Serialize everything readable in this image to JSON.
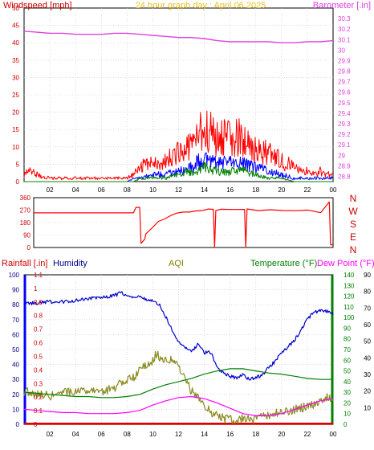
{
  "chart_data": [
    {
      "type": "line",
      "title": "24 hour graph day : April 06 2025",
      "ylabel": "Windspeed [mph]",
      "y2label": "Barometer [.in]",
      "x_ticks": [
        "02",
        "04",
        "06",
        "08",
        "10",
        "12",
        "14",
        "16",
        "18",
        "20",
        "22",
        "00"
      ],
      "ylim": [
        0,
        50
      ],
      "y_ticks": [
        "0",
        "5",
        "10",
        "15",
        "20",
        "25",
        "30",
        "35",
        "40",
        "45",
        "50"
      ],
      "y2lim": [
        28.75,
        30.4
      ],
      "y2_ticks": [
        "28.8",
        "28.9",
        "29",
        "29.1",
        "29.2",
        "29.3",
        "29.4",
        "29.5",
        "29.6",
        "29.7",
        "29.8",
        "29.9",
        "30",
        "30.1",
        "30.2",
        "30.3"
      ],
      "grid": true,
      "series": [
        {
          "key": "barometer",
          "color": "#e040e0",
          "axis": "right",
          "x": [
            0,
            1,
            2,
            3,
            4,
            5,
            6,
            7,
            8,
            9,
            10,
            11,
            12,
            13,
            14,
            15,
            16,
            17,
            18,
            19,
            20,
            21,
            22,
            23,
            24
          ],
          "y": [
            30.18,
            30.17,
            30.16,
            30.16,
            30.15,
            30.15,
            30.15,
            30.16,
            30.16,
            30.15,
            30.14,
            30.13,
            30.12,
            30.12,
            30.11,
            30.09,
            30.08,
            30.08,
            30.08,
            30.08,
            30.07,
            30.07,
            30.08,
            30.08,
            30.09
          ]
        },
        {
          "key": "gust",
          "color": "#ff0000",
          "axis": "left",
          "x": [
            0,
            0.5,
            1,
            2,
            3,
            4,
            5,
            6,
            7,
            8,
            8.5,
            9,
            9.5,
            10,
            10.5,
            11,
            11.5,
            12,
            12.5,
            13,
            13.5,
            14,
            14.5,
            15,
            15.5,
            16,
            16.5,
            17,
            17.5,
            18,
            18.5,
            19,
            19.5,
            20,
            20.5,
            21,
            21.5,
            22,
            22.5,
            23,
            23.5,
            24
          ],
          "y": [
            2,
            3,
            2,
            1,
            1,
            1,
            1,
            1,
            1,
            1,
            2,
            4,
            5,
            5,
            6,
            6,
            7,
            8,
            9,
            11,
            13,
            15,
            14,
            12,
            13,
            12,
            13,
            12,
            11,
            9,
            9,
            8,
            7,
            6,
            5,
            4,
            3,
            3,
            2,
            3,
            2,
            2
          ]
        },
        {
          "key": "average",
          "color": "#0000ff",
          "axis": "left",
          "x": [
            0,
            2,
            4,
            6,
            8,
            8.5,
            9,
            10,
            11,
            12,
            13,
            14,
            15,
            16,
            17,
            18,
            19,
            20,
            21,
            22,
            23,
            24
          ],
          "y": [
            0,
            0,
            0,
            0,
            0,
            1,
            1,
            2,
            2,
            3,
            4,
            7,
            5,
            6,
            5,
            4,
            3,
            2,
            1,
            1,
            1,
            1
          ]
        },
        {
          "key": "speed",
          "color": "#008000",
          "axis": "left",
          "x": [
            0,
            2,
            4,
            6,
            8,
            8.5,
            9,
            10,
            11,
            12,
            13,
            14,
            15,
            16,
            17,
            18,
            19,
            20,
            21,
            22,
            23,
            24
          ],
          "y": [
            0,
            0,
            0,
            0,
            0,
            0,
            1,
            1,
            1,
            2,
            3,
            4,
            3,
            3,
            3,
            2,
            1,
            1,
            0,
            0,
            0,
            0
          ]
        }
      ]
    },
    {
      "type": "line",
      "y_ticks": [
        "0",
        "90",
        "180",
        "270",
        "360"
      ],
      "ylim": [
        0,
        360
      ],
      "compass": [
        "N",
        "W",
        "S",
        "E",
        "N"
      ],
      "series": [
        {
          "key": "direction",
          "color": "#ff0000",
          "x": [
            0,
            7,
            8,
            8.2,
            8.4,
            8.5,
            8.6,
            8.9,
            9,
            9.5,
            10,
            10.5,
            11,
            11.5,
            12,
            12.5,
            13,
            13.5,
            14,
            14.4,
            14.5,
            14.6,
            15,
            16,
            16.9,
            17,
            17.1,
            18,
            19,
            20,
            21,
            22,
            23,
            23.7,
            23.8,
            23.9,
            24
          ],
          "y": [
            250,
            250,
            250,
            290,
            290,
            290,
            30,
            60,
            100,
            150,
            180,
            210,
            230,
            240,
            250,
            255,
            260,
            265,
            270,
            270,
            0,
            270,
            268,
            272,
            270,
            0,
            270,
            275,
            270,
            268,
            265,
            262,
            255,
            330,
            20,
            20,
            20
          ]
        }
      ]
    },
    {
      "type": "line",
      "legend": [
        {
          "label": "Rainfall [.in]",
          "color": "#ff0000"
        },
        {
          "label": "Humidity",
          "color": "#0000aa"
        },
        {
          "label": "AQI",
          "color": "#808000"
        },
        {
          "label": "Temperature (°F)",
          "color": "#008000"
        },
        {
          "label": "Dew Point (°F)",
          "color": "#ff00ff"
        }
      ],
      "rain_ticks": [
        "0",
        "0.1",
        "0.2",
        "0.3",
        "0.4",
        "0.5",
        "0.6",
        "0.7",
        "0.8",
        "0.9",
        "1",
        "1.1"
      ],
      "humidity_ticks": [
        "0",
        "10",
        "20",
        "30",
        "40",
        "50",
        "60",
        "70",
        "80",
        "90",
        "100"
      ],
      "temp_ticks": [
        "0",
        "10",
        "20",
        "30",
        "40",
        "50",
        "60",
        "70",
        "80",
        "90",
        "100",
        "110",
        "120",
        "130",
        "140"
      ],
      "right_ticks": [
        "10",
        "20",
        "30",
        "40",
        "50",
        "60",
        "70",
        "80",
        "90"
      ],
      "x_ticks": [
        "02",
        "04",
        "06",
        "08",
        "10",
        "12",
        "14",
        "16",
        "18",
        "20",
        "22",
        "00"
      ],
      "grid": true,
      "series": [
        {
          "key": "humidity",
          "color": "#0000cc",
          "axis": "humidity",
          "x": [
            0,
            1,
            2,
            3,
            4,
            5,
            6,
            7,
            7.5,
            8,
            9,
            10,
            10.5,
            11,
            11.5,
            12,
            12.5,
            13,
            13.5,
            14,
            14.5,
            15,
            15.5,
            16,
            16.5,
            17,
            17.5,
            18,
            18.5,
            19,
            19.5,
            20,
            20.5,
            21,
            21.5,
            22,
            22.5,
            23,
            23.5,
            24
          ],
          "y": [
            81,
            81,
            82,
            82,
            83,
            84,
            85,
            86,
            88,
            86,
            85,
            83,
            80,
            72,
            63,
            55,
            52,
            48,
            54,
            48,
            48,
            38,
            34,
            32,
            31,
            33,
            30,
            31,
            33,
            38,
            42,
            48,
            52,
            56,
            63,
            70,
            75,
            76,
            76,
            74
          ]
        },
        {
          "key": "aqi",
          "color": "#8a8a20",
          "axis": "humidity",
          "x": [
            0,
            0.5,
            1,
            2,
            3,
            4,
            5,
            5.5,
            6,
            6.5,
            7,
            7.5,
            8,
            8.5,
            9,
            9.5,
            10,
            10.3,
            10.6,
            11,
            11.5,
            12,
            12.5,
            13,
            13.5,
            14,
            14.5,
            15,
            15.5,
            16,
            16.5,
            17,
            17.5,
            18,
            19,
            20,
            21,
            22,
            23,
            23.5,
            24
          ],
          "y": [
            22,
            21,
            20,
            19,
            21,
            22,
            23,
            24,
            22,
            23,
            24,
            28,
            30,
            31,
            36,
            40,
            42,
            48,
            44,
            42,
            44,
            38,
            30,
            22,
            18,
            12,
            8,
            6,
            4,
            3,
            3,
            4,
            3,
            4,
            6,
            8,
            10,
            12,
            15,
            18,
            16
          ]
        },
        {
          "key": "temperature",
          "color": "#008000",
          "axis": "temp",
          "x": [
            0,
            1,
            2,
            3,
            4,
            5,
            6,
            7,
            8,
            9,
            10,
            11,
            12,
            13,
            14,
            15,
            16,
            17,
            18,
            19,
            20,
            21,
            22,
            23,
            24
          ],
          "y": [
            30,
            29,
            28,
            27,
            26,
            26,
            25,
            25,
            26,
            28,
            33,
            37,
            40,
            43,
            47,
            50,
            52,
            52,
            50,
            48,
            47,
            45,
            43,
            42,
            42
          ]
        },
        {
          "key": "dewpoint",
          "color": "#ff00ff",
          "axis": "temp",
          "x": [
            0,
            1,
            2,
            3,
            4,
            5,
            6,
            7,
            8,
            9,
            10,
            11,
            12,
            13,
            14,
            15,
            16,
            17,
            18,
            19,
            20,
            21,
            22,
            23,
            24
          ],
          "y": [
            14,
            13,
            12,
            11,
            11,
            10,
            10,
            10,
            11,
            13,
            18,
            22,
            25,
            26,
            24,
            20,
            15,
            10,
            8,
            8,
            10,
            14,
            18,
            22,
            24
          ]
        },
        {
          "key": "rainfall",
          "color": "#dd0000",
          "axis": "rain",
          "x": [
            0,
            24
          ],
          "y": [
            0,
            0
          ]
        }
      ]
    }
  ]
}
